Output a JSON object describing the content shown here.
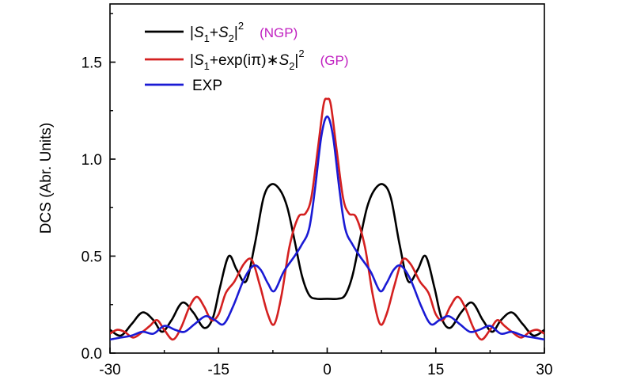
{
  "chart_data": {
    "type": "line",
    "title": "",
    "xlabel": "",
    "ylabel": "DCS (Abr. Units)",
    "xlim": [
      -30,
      30
    ],
    "ylim": [
      0.0,
      1.8
    ],
    "xticks": [
      -30,
      -15,
      0,
      15,
      30
    ],
    "xtick_labels": [
      "-30",
      "-15",
      "0",
      "15",
      "30"
    ],
    "yticks": [
      0.0,
      0.5,
      1.0,
      1.5
    ],
    "ytick_labels": [
      "0.0",
      "0.5",
      "1.0",
      "1.5"
    ],
    "grid": false,
    "legend_position": "top-left",
    "series": [
      {
        "name": "|S1+S2|^2",
        "legend_parts": {
          "base": "|S",
          "sub1": "1",
          "mid": "+S",
          "sub2": "2",
          "tail": "|",
          "sup": "2"
        },
        "note": "(NGP)",
        "color": "#000000",
        "points": [
          [
            -30,
            0.12
          ],
          [
            -28.5,
            0.09
          ],
          [
            -27,
            0.15
          ],
          [
            -25.5,
            0.21
          ],
          [
            -24,
            0.17
          ],
          [
            -22.8,
            0.11
          ],
          [
            -21.5,
            0.17
          ],
          [
            -20,
            0.26
          ],
          [
            -18.5,
            0.21
          ],
          [
            -17,
            0.13
          ],
          [
            -15.8,
            0.18
          ],
          [
            -14.8,
            0.34
          ],
          [
            -13.6,
            0.5
          ],
          [
            -12.5,
            0.43
          ],
          [
            -11.2,
            0.37
          ],
          [
            -10,
            0.56
          ],
          [
            -8.8,
            0.8
          ],
          [
            -7.7,
            0.87
          ],
          [
            -6.5,
            0.84
          ],
          [
            -5.5,
            0.75
          ],
          [
            -4.5,
            0.58
          ],
          [
            -3.5,
            0.4
          ],
          [
            -2.5,
            0.3
          ],
          [
            -1.5,
            0.28
          ],
          [
            0,
            0.28
          ],
          [
            1.5,
            0.28
          ],
          [
            2.5,
            0.3
          ],
          [
            3.5,
            0.4
          ],
          [
            4.5,
            0.58
          ],
          [
            5.5,
            0.75
          ],
          [
            6.5,
            0.84
          ],
          [
            7.7,
            0.87
          ],
          [
            8.8,
            0.8
          ],
          [
            10,
            0.56
          ],
          [
            11.2,
            0.37
          ],
          [
            12.5,
            0.43
          ],
          [
            13.6,
            0.5
          ],
          [
            14.8,
            0.34
          ],
          [
            15.8,
            0.18
          ],
          [
            17,
            0.13
          ],
          [
            18.5,
            0.21
          ],
          [
            20,
            0.26
          ],
          [
            21.5,
            0.17
          ],
          [
            22.8,
            0.11
          ],
          [
            24,
            0.17
          ],
          [
            25.5,
            0.21
          ],
          [
            27,
            0.15
          ],
          [
            28.5,
            0.09
          ],
          [
            30,
            0.12
          ]
        ]
      },
      {
        "name": "|S1+exp(iπ)*S2|^2",
        "legend_parts": {
          "base": "|S",
          "sub1": "1",
          "mid": "+exp(iπ)∗S",
          "sub2": "2",
          "tail": "|",
          "sup": "2"
        },
        "note": "(GP)",
        "color": "#d42020",
        "points": [
          [
            -30,
            0.1
          ],
          [
            -29,
            0.12
          ],
          [
            -28,
            0.11
          ],
          [
            -26.8,
            0.08
          ],
          [
            -25.5,
            0.11
          ],
          [
            -24.5,
            0.14
          ],
          [
            -23.5,
            0.17
          ],
          [
            -22.5,
            0.12
          ],
          [
            -21.3,
            0.07
          ],
          [
            -20.2,
            0.13
          ],
          [
            -19,
            0.24
          ],
          [
            -18,
            0.29
          ],
          [
            -17,
            0.24
          ],
          [
            -16,
            0.17
          ],
          [
            -15,
            0.2
          ],
          [
            -14,
            0.31
          ],
          [
            -12.8,
            0.37
          ],
          [
            -11.5,
            0.46
          ],
          [
            -10.4,
            0.48
          ],
          [
            -9.3,
            0.35
          ],
          [
            -8.2,
            0.2
          ],
          [
            -7.3,
            0.15
          ],
          [
            -6.3,
            0.3
          ],
          [
            -5.2,
            0.55
          ],
          [
            -4,
            0.7
          ],
          [
            -3,
            0.72
          ],
          [
            -2.2,
            0.8
          ],
          [
            -1.3,
            1.05
          ],
          [
            -0.5,
            1.28
          ],
          [
            0,
            1.31
          ],
          [
            0.5,
            1.28
          ],
          [
            1.3,
            1.05
          ],
          [
            2.2,
            0.8
          ],
          [
            3,
            0.72
          ],
          [
            4,
            0.7
          ],
          [
            5.2,
            0.55
          ],
          [
            6.3,
            0.3
          ],
          [
            7.3,
            0.15
          ],
          [
            8.2,
            0.2
          ],
          [
            9.3,
            0.35
          ],
          [
            10.4,
            0.48
          ],
          [
            11.5,
            0.46
          ],
          [
            12.8,
            0.37
          ],
          [
            14,
            0.31
          ],
          [
            15,
            0.2
          ],
          [
            16,
            0.17
          ],
          [
            17,
            0.24
          ],
          [
            18,
            0.29
          ],
          [
            19,
            0.24
          ],
          [
            20.2,
            0.13
          ],
          [
            21.3,
            0.07
          ],
          [
            22.5,
            0.12
          ],
          [
            23.5,
            0.17
          ],
          [
            24.5,
            0.14
          ],
          [
            25.5,
            0.11
          ],
          [
            26.8,
            0.08
          ],
          [
            28,
            0.11
          ],
          [
            29,
            0.12
          ],
          [
            30,
            0.1
          ]
        ]
      },
      {
        "name": "EXP",
        "color": "#1a1ad4",
        "points": [
          [
            -30,
            0.07
          ],
          [
            -28.5,
            0.08
          ],
          [
            -27,
            0.09
          ],
          [
            -25.5,
            0.11
          ],
          [
            -24,
            0.1
          ],
          [
            -22.5,
            0.14
          ],
          [
            -21,
            0.12
          ],
          [
            -19.7,
            0.11
          ],
          [
            -18.3,
            0.15
          ],
          [
            -16.8,
            0.19
          ],
          [
            -15.5,
            0.17
          ],
          [
            -14.3,
            0.15
          ],
          [
            -13,
            0.24
          ],
          [
            -11.5,
            0.38
          ],
          [
            -10.2,
            0.45
          ],
          [
            -9.2,
            0.43
          ],
          [
            -8.2,
            0.36
          ],
          [
            -7.3,
            0.32
          ],
          [
            -6,
            0.42
          ],
          [
            -4.5,
            0.5
          ],
          [
            -3.5,
            0.56
          ],
          [
            -2.5,
            0.64
          ],
          [
            -1.7,
            0.84
          ],
          [
            -0.8,
            1.12
          ],
          [
            0,
            1.22
          ],
          [
            0.8,
            1.12
          ],
          [
            1.7,
            0.84
          ],
          [
            2.5,
            0.64
          ],
          [
            3.5,
            0.56
          ],
          [
            4.5,
            0.5
          ],
          [
            6,
            0.42
          ],
          [
            7.3,
            0.32
          ],
          [
            8.2,
            0.36
          ],
          [
            9.2,
            0.43
          ],
          [
            10.2,
            0.45
          ],
          [
            11.5,
            0.38
          ],
          [
            13,
            0.24
          ],
          [
            14.3,
            0.15
          ],
          [
            15.5,
            0.17
          ],
          [
            16.8,
            0.19
          ],
          [
            18.3,
            0.15
          ],
          [
            19.7,
            0.11
          ],
          [
            21,
            0.12
          ],
          [
            22.5,
            0.14
          ],
          [
            24,
            0.1
          ],
          [
            25.5,
            0.11
          ],
          [
            27,
            0.09
          ],
          [
            28.5,
            0.08
          ],
          [
            30,
            0.07
          ]
        ]
      }
    ],
    "note_color": "#c020c0"
  }
}
